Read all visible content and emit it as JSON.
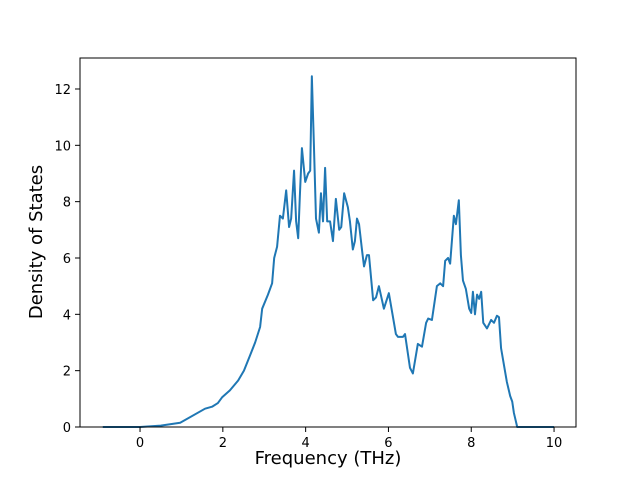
{
  "chart_data": {
    "type": "line",
    "x_label": "Frequency (THz)",
    "y_label": "Density of States",
    "xlim": [
      -1.45,
      10.53
    ],
    "ylim": [
      0,
      13.1
    ],
    "xticks": [
      0,
      2,
      4,
      6,
      8,
      10
    ],
    "yticks": [
      0,
      2,
      4,
      6,
      8,
      10,
      12
    ],
    "grid": false,
    "series": [
      {
        "color": "#1f77b4",
        "x": [
          -0.9,
          -0.5,
          0,
          0.5,
          0.97,
          1.57,
          1.74,
          1.88,
          1.98,
          2.17,
          2.37,
          2.51,
          2.66,
          2.78,
          2.9,
          2.95,
          3.09,
          3.19,
          3.24,
          3.31,
          3.38,
          3.45,
          3.53,
          3.6,
          3.65,
          3.72,
          3.77,
          3.82,
          3.86,
          3.91,
          3.99,
          4.06,
          4.11,
          4.15,
          4.2,
          4.25,
          4.32,
          4.37,
          4.42,
          4.47,
          4.52,
          4.59,
          4.66,
          4.73,
          4.81,
          4.86,
          4.93,
          5.02,
          5.07,
          5.14,
          5.19,
          5.24,
          5.29,
          5.36,
          5.41,
          5.48,
          5.53,
          5.63,
          5.7,
          5.77,
          5.89,
          6.01,
          6.11,
          6.18,
          6.23,
          6.35,
          6.4,
          6.47,
          6.52,
          6.59,
          6.71,
          6.81,
          6.91,
          6.96,
          7.05,
          7.13,
          7.17,
          7.25,
          7.32,
          7.37,
          7.44,
          7.49,
          7.58,
          7.63,
          7.7,
          7.75,
          7.8,
          7.87,
          7.95,
          8.0,
          8.04,
          8.09,
          8.14,
          8.19,
          8.24,
          8.29,
          8.38,
          8.48,
          8.55,
          8.62,
          8.67,
          8.72,
          8.79,
          8.86,
          8.94,
          8.99,
          9.03,
          9.11,
          9.66,
          10
        ],
        "values": [
          0,
          0,
          0,
          0.05,
          0.15,
          0.65,
          0.72,
          0.85,
          1.05,
          1.3,
          1.65,
          2.0,
          2.55,
          3.0,
          3.55,
          4.2,
          4.7,
          5.1,
          6.0,
          6.4,
          7.5,
          7.4,
          8.4,
          7.1,
          7.4,
          9.1,
          7.3,
          6.7,
          8.2,
          9.9,
          8.7,
          9.0,
          9.1,
          12.45,
          10.0,
          7.4,
          6.9,
          8.3,
          7.3,
          9.2,
          7.3,
          7.3,
          6.6,
          8.1,
          7.0,
          7.1,
          8.3,
          7.8,
          7.3,
          6.3,
          6.6,
          7.4,
          7.2,
          6.3,
          5.7,
          6.1,
          6.1,
          4.5,
          4.6,
          5.0,
          4.2,
          4.75,
          3.9,
          3.3,
          3.2,
          3.2,
          3.3,
          2.6,
          2.1,
          1.9,
          2.95,
          2.85,
          3.7,
          3.85,
          3.8,
          4.6,
          5.0,
          5.1,
          5.0,
          5.9,
          6.0,
          5.8,
          7.5,
          7.2,
          8.05,
          6.1,
          5.2,
          4.9,
          4.2,
          4.05,
          4.8,
          4.0,
          4.7,
          4.55,
          4.8,
          3.7,
          3.5,
          3.8,
          3.7,
          3.95,
          3.9,
          2.8,
          2.2,
          1.6,
          1.1,
          0.9,
          0.5,
          0,
          0,
          0
        ]
      }
    ]
  }
}
